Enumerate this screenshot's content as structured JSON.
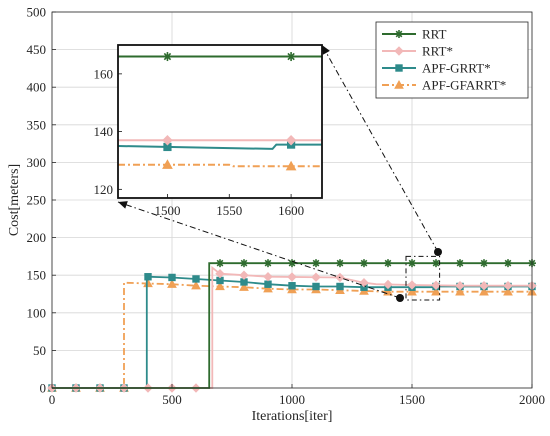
{
  "chart_data": [
    {
      "type": "line",
      "title": "",
      "xlabel": "Iterations[iter]",
      "ylabel": "Cost[meters]",
      "xlim": [
        0,
        2000
      ],
      "ylim": [
        0,
        500
      ],
      "xticks": [
        0,
        500,
        1000,
        1500,
        2000
      ],
      "yticks": [
        0,
        50,
        100,
        150,
        200,
        250,
        300,
        350,
        400,
        450,
        500
      ],
      "grid": true,
      "legend_position": "top-right",
      "series": [
        {
          "name": "RRT",
          "color": "#2e6b2e",
          "dash": "solid",
          "marker": "asterisk",
          "points": [
            [
              0,
              0
            ],
            [
              655,
              0
            ],
            [
              655,
              166
            ],
            [
              2000,
              166
            ]
          ],
          "marker_x": [
            700,
            800,
            900,
            1000,
            1100,
            1200,
            1300,
            1400,
            1500,
            1600,
            1700,
            1800,
            1900,
            2000
          ]
        },
        {
          "name": "RRT*",
          "color": "#f2b8b8",
          "dash": "solid",
          "marker": "diamond",
          "points": [
            [
              0,
              0
            ],
            [
              668,
              0
            ],
            [
              668,
              160
            ],
            [
              700,
              152
            ],
            [
              800,
              150
            ],
            [
              900,
              148
            ],
            [
              1200,
              147
            ],
            [
              1300,
              140
            ],
            [
              1350,
              138
            ],
            [
              1500,
              137
            ],
            [
              1700,
              136
            ],
            [
              2000,
              136
            ]
          ],
          "marker_x": [
            0,
            100,
            200,
            300,
            400,
            500,
            600,
            700,
            800,
            900,
            1000,
            1100,
            1200,
            1300,
            1400,
            1500,
            1600,
            1700,
            1800,
            1900,
            2000
          ]
        },
        {
          "name": "APF-GRRT*",
          "color": "#2e8b8b",
          "dash": "solid",
          "marker": "square",
          "points": [
            [
              0,
              0
            ],
            [
              395,
              0
            ],
            [
              395,
              148
            ],
            [
              500,
              147
            ],
            [
              600,
              145
            ],
            [
              700,
              143
            ],
            [
              800,
              141
            ],
            [
              900,
              138
            ],
            [
              1000,
              136
            ],
            [
              1100,
              135
            ],
            [
              1200,
              135
            ],
            [
              1300,
              134
            ],
            [
              1400,
              134
            ],
            [
              1585,
              134
            ],
            [
              1585,
              135
            ],
            [
              2000,
              135
            ]
          ],
          "marker_x": [
            0,
            100,
            200,
            300,
            400,
            500,
            600,
            700,
            800,
            900,
            1000,
            1100,
            1200,
            1300,
            1400,
            1500,
            1600,
            1700,
            1800,
            1900,
            2000
          ]
        },
        {
          "name": "APF-GFARRT*",
          "color": "#f0a055",
          "dash": "dashdot",
          "marker": "triangle",
          "points": [
            [
              0,
              0
            ],
            [
              300,
              0
            ],
            [
              300,
              140
            ],
            [
              400,
              139
            ],
            [
              500,
              138
            ],
            [
              600,
              136
            ],
            [
              700,
              135
            ],
            [
              800,
              134
            ],
            [
              900,
              132
            ],
            [
              1000,
              131
            ],
            [
              1100,
              131
            ],
            [
              1200,
              130
            ],
            [
              1300,
              129
            ],
            [
              1400,
              128
            ],
            [
              1500,
              128
            ],
            [
              2000,
              128
            ]
          ],
          "marker_x": [
            0,
            100,
            200,
            300,
            400,
            500,
            600,
            700,
            800,
            900,
            1000,
            1100,
            1200,
            1300,
            1400,
            1500,
            1600,
            1700,
            1800,
            1900,
            2000
          ]
        }
      ]
    },
    {
      "type": "line",
      "title": "",
      "xlim": [
        1460,
        1625
      ],
      "ylim": [
        117,
        170
      ],
      "xticks": [
        1500,
        1550,
        1600
      ],
      "yticks": [
        120,
        140,
        160
      ],
      "grid": false,
      "source_region": {
        "x": [
          1475,
          1615
        ],
        "y": [
          117,
          175
        ]
      },
      "series": [
        {
          "name": "RRT",
          "points": [
            [
              1460,
              166
            ],
            [
              1625,
              166
            ]
          ],
          "marker_x": [
            1500,
            1600
          ]
        },
        {
          "name": "RRT*",
          "points": [
            [
              1460,
              137
            ],
            [
              1625,
              137
            ]
          ],
          "marker_x": [
            1500,
            1600
          ]
        },
        {
          "name": "APF-GRRT*",
          "points": [
            [
              1460,
              135
            ],
            [
              1585,
              134
            ],
            [
              1588,
              135.5
            ],
            [
              1625,
              135.5
            ]
          ],
          "marker_x": [
            1500,
            1600
          ]
        },
        {
          "name": "APF-GFARRT*",
          "points": [
            [
              1460,
              128.5
            ],
            [
              1550,
              128.5
            ],
            [
              1553,
              128
            ],
            [
              1625,
              128
            ]
          ],
          "marker_x": [
            1500,
            1600
          ]
        }
      ]
    }
  ]
}
